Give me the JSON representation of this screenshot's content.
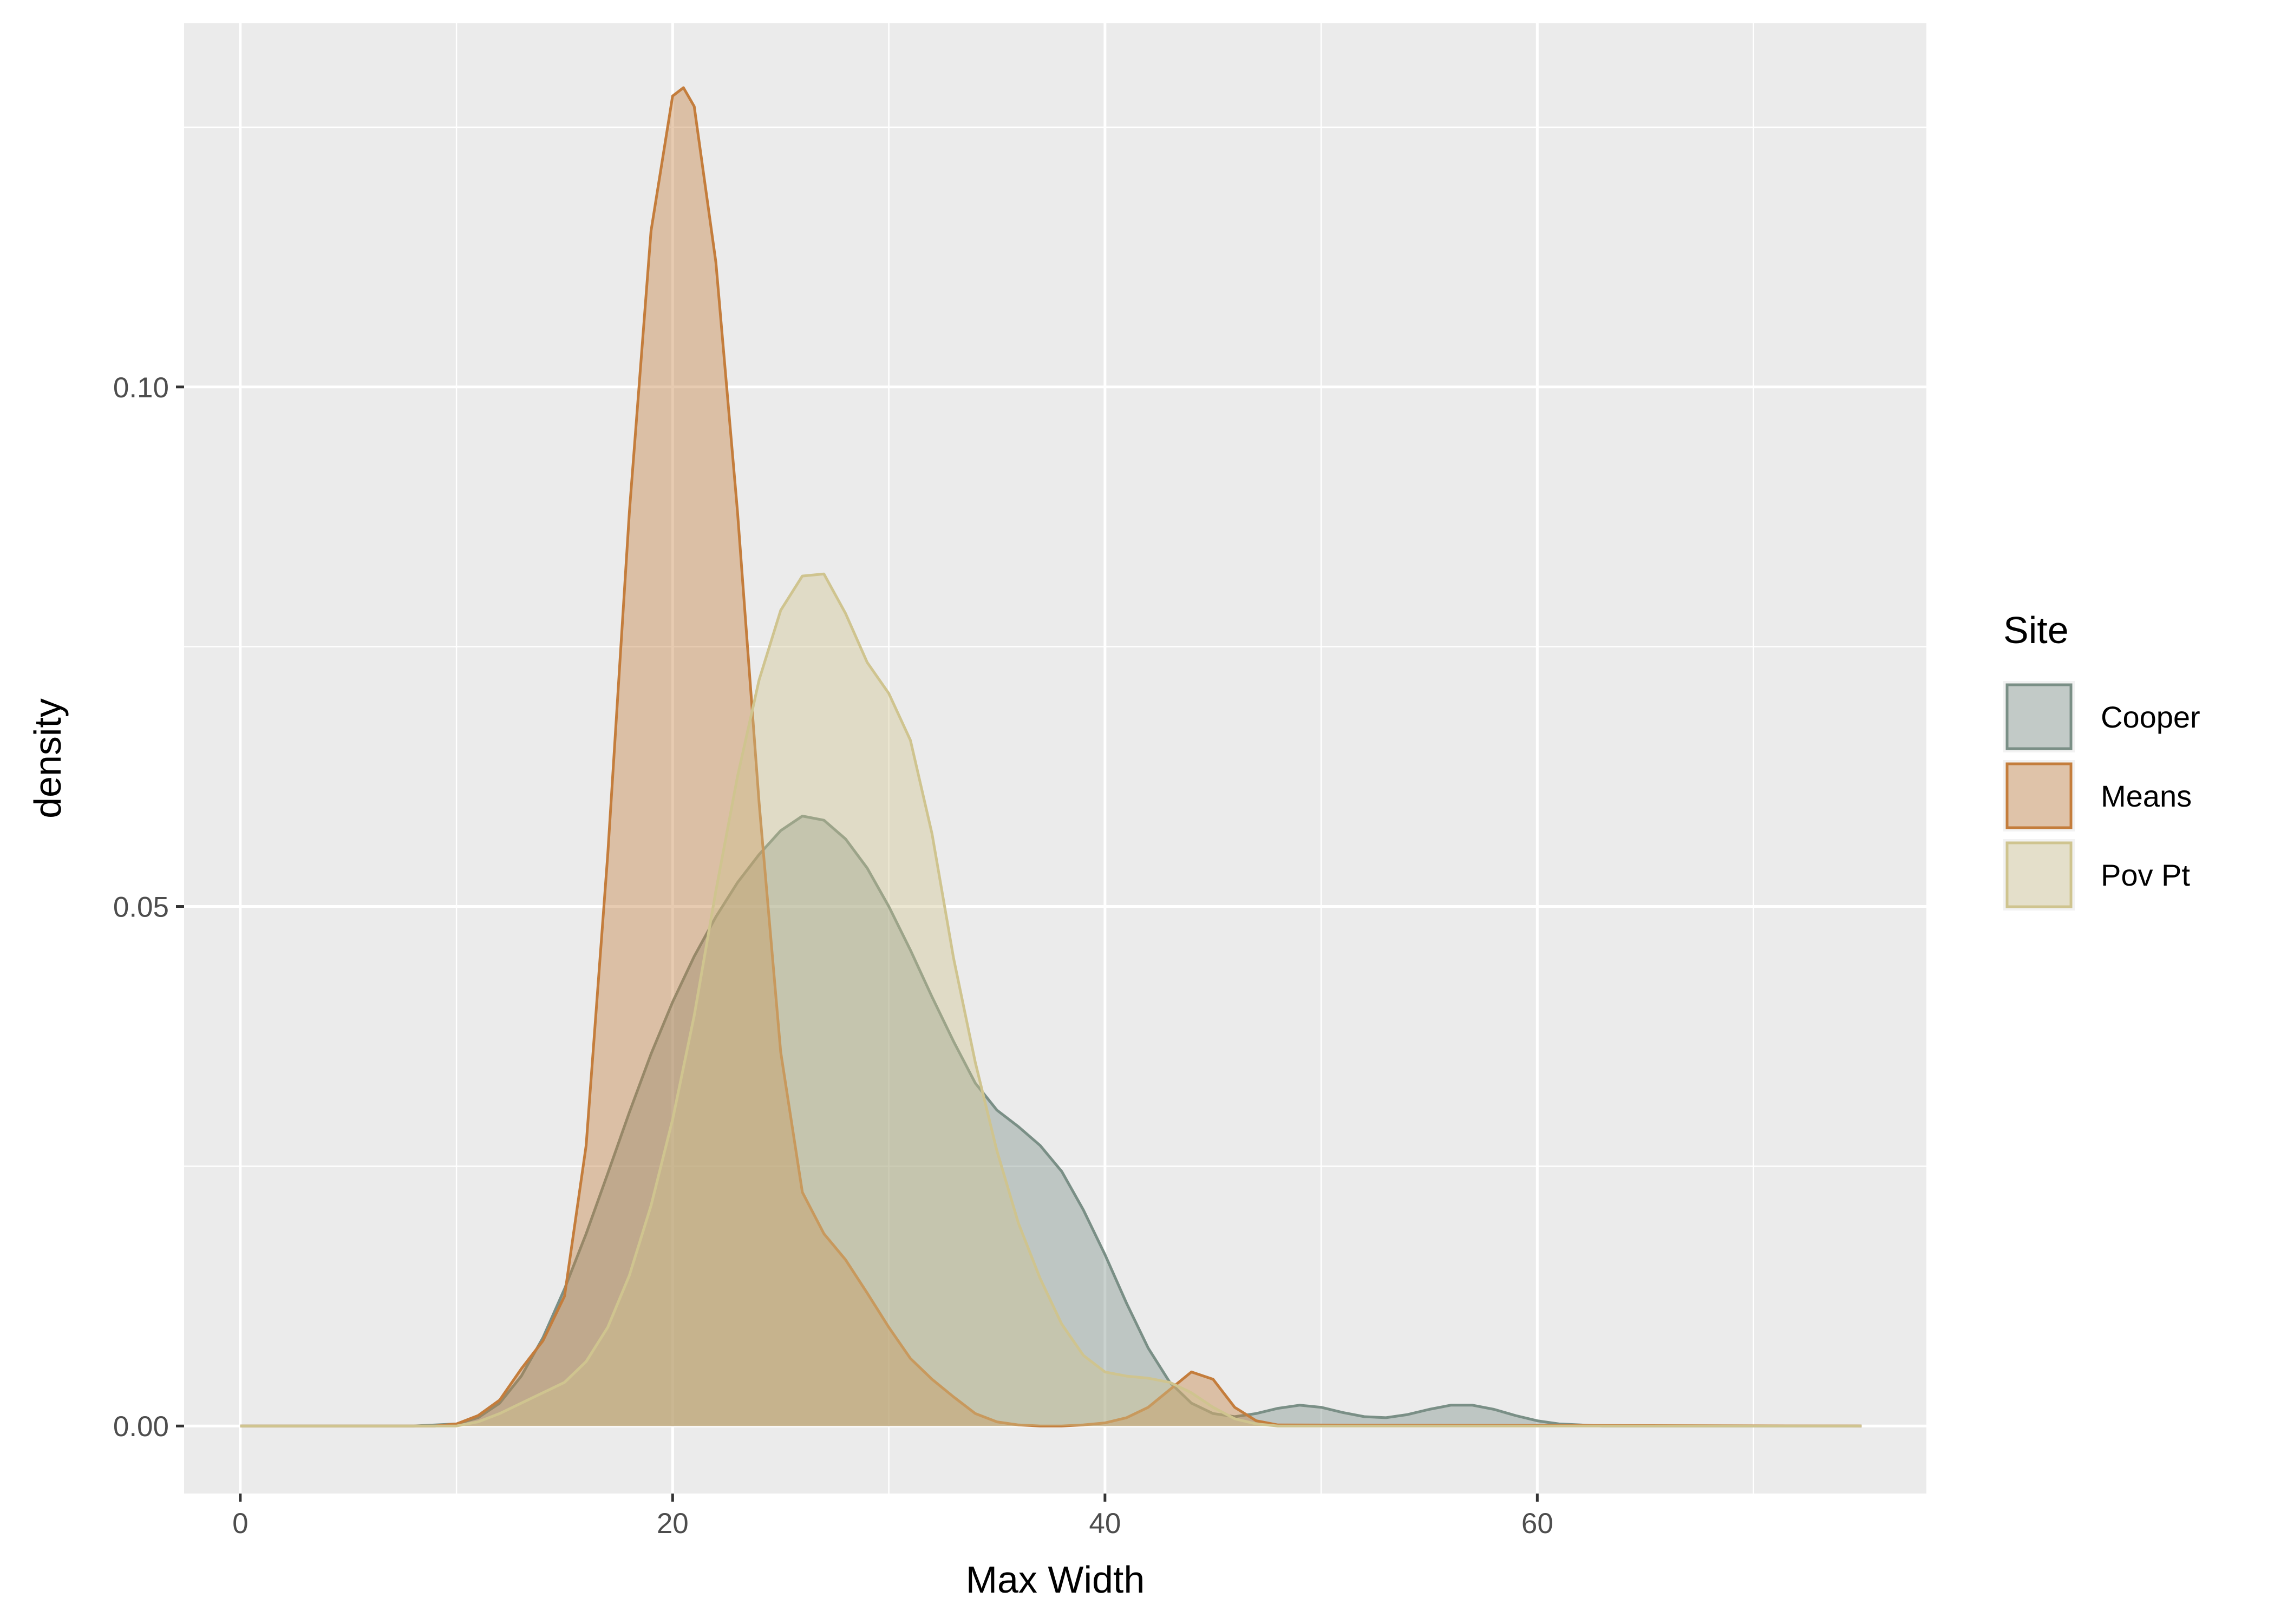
{
  "chart_data": {
    "type": "area",
    "chart_kind": "density",
    "xlabel": "Max Width",
    "ylabel": "density",
    "xlim": [
      -2.6,
      78
    ],
    "ylim": [
      -0.0065,
      0.135
    ],
    "x_ticks": [
      0,
      20,
      40,
      60
    ],
    "x_tick_labels": [
      "0",
      "20",
      "40",
      "60"
    ],
    "x_minor_ticks": [
      10,
      30,
      50,
      70
    ],
    "y_ticks": [
      0,
      0.05,
      0.1
    ],
    "y_tick_labels": [
      "0.00",
      "0.05",
      "0.10"
    ],
    "y_minor_ticks": [
      0.025,
      0.075,
      0.125
    ],
    "grid": true,
    "panel_background": "#ebebeb",
    "grid_color": "#ffffff",
    "legend": {
      "title": "Site",
      "position": "right"
    },
    "series": [
      {
        "name": "Cooper",
        "color": "#7a8f86",
        "fill": "#bfc8c3",
        "x": [
          0,
          8,
          10,
          11,
          12,
          13,
          14,
          15,
          16,
          17,
          18,
          19,
          20,
          21,
          22,
          23,
          24,
          25,
          26,
          27,
          28,
          29,
          30,
          31,
          32,
          33,
          34,
          35,
          36,
          37,
          38,
          39,
          40,
          41,
          42,
          43,
          44,
          45,
          46,
          47,
          48,
          49,
          50,
          51,
          52,
          53,
          54,
          55,
          56,
          57,
          58,
          59,
          60,
          61,
          62,
          63,
          64,
          75
        ],
        "y": [
          0,
          0,
          0.0002,
          0.0008,
          0.0022,
          0.0048,
          0.0085,
          0.0132,
          0.0185,
          0.0243,
          0.0302,
          0.0358,
          0.0408,
          0.0452,
          0.049,
          0.0523,
          0.055,
          0.0573,
          0.0587,
          0.0583,
          0.0565,
          0.0537,
          0.05,
          0.0458,
          0.0413,
          0.037,
          0.033,
          0.0304,
          0.0288,
          0.027,
          0.0245,
          0.0208,
          0.0165,
          0.0118,
          0.0075,
          0.0042,
          0.0022,
          0.0012,
          0.0009,
          0.0012,
          0.0017,
          0.002,
          0.0018,
          0.0013,
          0.0009,
          0.0008,
          0.0011,
          0.0016,
          0.002,
          0.002,
          0.0016,
          0.001,
          0.0005,
          0.0002,
          0.0001,
          0,
          0,
          0
        ]
      },
      {
        "name": "Means",
        "color": "#c47d3c",
        "fill": "#dcc0a4",
        "x": [
          0,
          9,
          10,
          11,
          12,
          13,
          14,
          15,
          16,
          17,
          18,
          19,
          20,
          20.5,
          21,
          22,
          23,
          24,
          25,
          26,
          27,
          28,
          29,
          30,
          31,
          32,
          33,
          34,
          35,
          36,
          37,
          38,
          39,
          40,
          41,
          42,
          43,
          44,
          45,
          46,
          47,
          48,
          75
        ],
        "y": [
          0,
          0,
          0.0002,
          0.001,
          0.0025,
          0.0055,
          0.0082,
          0.0125,
          0.027,
          0.055,
          0.088,
          0.115,
          0.128,
          0.1288,
          0.127,
          0.112,
          0.088,
          0.06,
          0.036,
          0.0225,
          0.0185,
          0.016,
          0.0128,
          0.0095,
          0.0065,
          0.0045,
          0.0028,
          0.0012,
          0.0004,
          0.0001,
          0,
          0,
          0.0001,
          0.0003,
          0.0008,
          0.0018,
          0.0035,
          0.0052,
          0.0045,
          0.0018,
          0.0005,
          0.0001,
          0
        ]
      },
      {
        "name": "Pov Pt",
        "color": "#cfc48f",
        "fill": "#e1dfc8",
        "x": [
          0,
          10,
          11,
          12,
          13,
          14,
          15,
          16,
          17,
          18,
          19,
          20,
          21,
          22,
          23,
          24,
          25,
          26,
          27,
          28,
          29,
          30,
          31,
          32,
          33,
          34,
          35,
          36,
          37,
          38,
          39,
          40,
          41,
          42,
          43,
          44,
          45,
          46,
          47,
          48,
          75
        ],
        "y": [
          0,
          0,
          0.0004,
          0.0012,
          0.0022,
          0.0032,
          0.0042,
          0.0062,
          0.0095,
          0.0145,
          0.0212,
          0.0295,
          0.0395,
          0.0515,
          0.0625,
          0.0718,
          0.0785,
          0.0818,
          0.082,
          0.0782,
          0.0735,
          0.0705,
          0.066,
          0.057,
          0.045,
          0.035,
          0.0265,
          0.0195,
          0.0142,
          0.0098,
          0.0068,
          0.0052,
          0.0048,
          0.0046,
          0.0042,
          0.0032,
          0.0018,
          0.0007,
          0.0002,
          0,
          0
        ]
      }
    ]
  }
}
